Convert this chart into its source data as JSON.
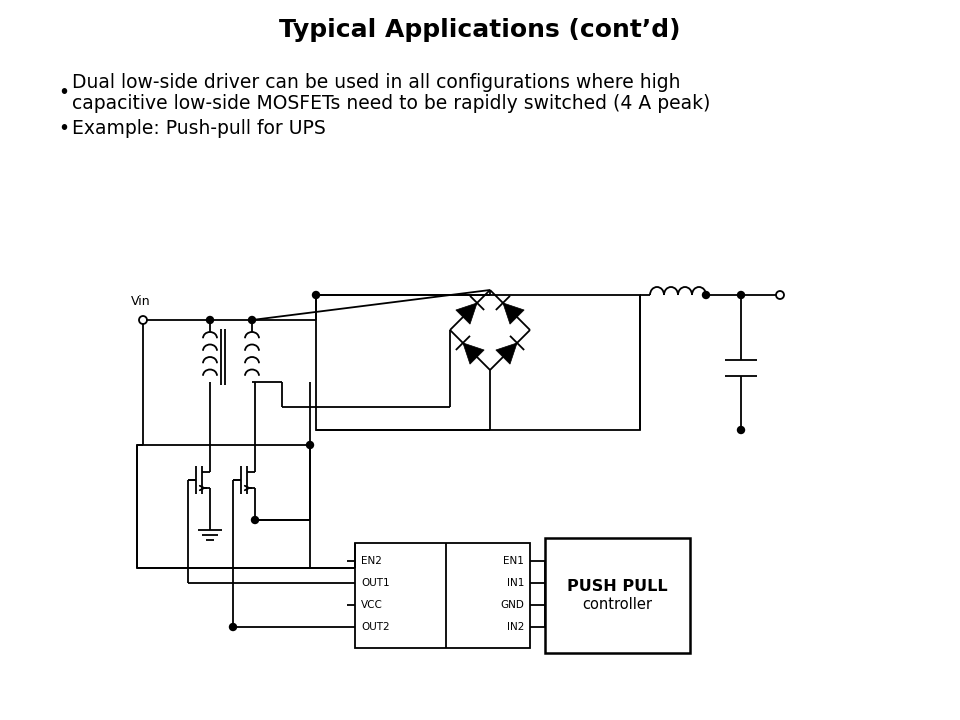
{
  "title": "Typical Applications (cont’d)",
  "title_fontsize": 18,
  "title_fontweight": "bold",
  "background_color": "#ffffff",
  "text_color": "#000000",
  "bullet1_line1": "Dual low-side driver can be used in all configurations where high",
  "bullet1_line2": "capacitive low-side MOSFETs need to be rapidly switched (4 A peak)",
  "bullet2": "Example: Push-pull for UPS",
  "bullet_fontsize": 13.5
}
